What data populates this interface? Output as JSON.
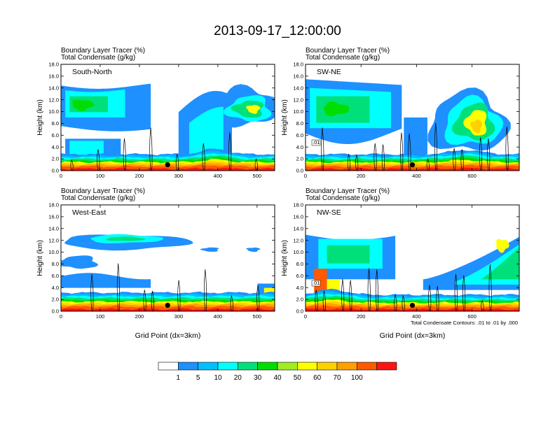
{
  "title": "2013-09-17_12:00:00",
  "colorbar": {
    "colors": [
      "#ffffff",
      "#1e90ff",
      "#00bfff",
      "#00ffff",
      "#00e07a",
      "#00dd00",
      "#a0ee20",
      "#ffff00",
      "#ffd000",
      "#ffa000",
      "#ff5a00",
      "#ff1414"
    ],
    "labels": [
      "1",
      "5",
      "10",
      "20",
      "30",
      "40",
      "50",
      "60",
      "70",
      "100"
    ]
  },
  "chart_data": [
    {
      "type": "heatmap",
      "panel": "South-North",
      "subtitle1": "Boundary Layer Tracer   (%)",
      "subtitle2": "Total Condensate   (g/kg)",
      "ylabel": "Height (km)",
      "xlabel": "",
      "xlim": [
        0,
        545
      ],
      "ylim": [
        0,
        18
      ],
      "xticks": [
        "0",
        "100",
        "200",
        "300",
        "400",
        "500"
      ],
      "xtick_values": [
        0,
        100,
        200,
        300,
        400,
        500
      ],
      "yticks": [
        "0.0",
        "2.0",
        "4.0",
        "6.0",
        "8.0",
        "10.0",
        "12.0",
        "14.0",
        "16.0",
        "18.0"
      ],
      "ytick_values": [
        0,
        2,
        4,
        6,
        8,
        10,
        12,
        14,
        16,
        18
      ],
      "marker": {
        "x": 272,
        "y": 1.0
      }
    },
    {
      "type": "heatmap",
      "panel": "SW-NE",
      "subtitle1": "Boundary Layer Tracer   (%)",
      "subtitle2": "Total Condensate   (g/kg)",
      "ylabel": "Height (km)",
      "xlabel": "",
      "xlim": [
        0,
        770
      ],
      "ylim": [
        0,
        18
      ],
      "xticks": [
        "0",
        "200",
        "400",
        "600"
      ],
      "xtick_values": [
        0,
        200,
        400,
        600
      ],
      "yticks": [
        "0.0",
        "2.0",
        "4.0",
        "6.0",
        "8.0",
        "10.0",
        "12.0",
        "14.0",
        "16.0",
        "18.0"
      ],
      "ytick_values": [
        0,
        2,
        4,
        6,
        8,
        10,
        12,
        14,
        16,
        18
      ],
      "marker": {
        "x": 385,
        "y": 1.0
      },
      "contour_label": ".01"
    },
    {
      "type": "heatmap",
      "panel": "West-East",
      "subtitle1": "Boundary Layer Tracer   (%)",
      "subtitle2": "Total Condensate   (g/kg)",
      "ylabel": "Height (km)",
      "xlabel": "Grid Point (dx=3km)",
      "xlim": [
        0,
        545
      ],
      "ylim": [
        0,
        18
      ],
      "xticks": [
        "0",
        "100",
        "200",
        "300",
        "400",
        "500"
      ],
      "xtick_values": [
        0,
        100,
        200,
        300,
        400,
        500
      ],
      "yticks": [
        "0.0",
        "2.0",
        "4.0",
        "6.0",
        "8.0",
        "10.0",
        "12.0",
        "14.0",
        "16.0",
        "18.0"
      ],
      "ytick_values": [
        0,
        2,
        4,
        6,
        8,
        10,
        12,
        14,
        16,
        18
      ],
      "marker": {
        "x": 272,
        "y": 1.0
      }
    },
    {
      "type": "heatmap",
      "panel": "NW-SE",
      "subtitle1": "Boundary Layer Tracer   (%)",
      "subtitle2": "Total Condensate   (g/kg)",
      "ylabel": "Height (km)",
      "xlabel": "Grid Point (dx=3km)",
      "xlim": [
        0,
        770
      ],
      "ylim": [
        0,
        18
      ],
      "xticks": [
        "0",
        "200",
        "400",
        "600"
      ],
      "xtick_values": [
        0,
        200,
        400,
        600
      ],
      "yticks": [
        "0.0",
        "2.0",
        "4.0",
        "6.0",
        "8.0",
        "10.0",
        "12.0",
        "14.0",
        "16.0",
        "18.0"
      ],
      "ytick_values": [
        0,
        2,
        4,
        6,
        8,
        10,
        12,
        14,
        16,
        18
      ],
      "marker": {
        "x": 385,
        "y": 1.0
      },
      "contour_label": ".01",
      "note": "Total Condensate Contours: .01 to .01 by .000"
    }
  ]
}
